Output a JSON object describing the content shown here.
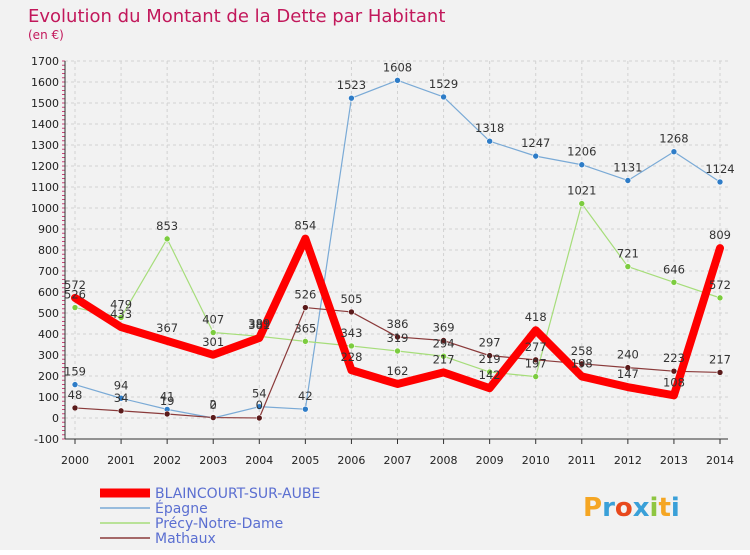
{
  "chart_data": {
    "type": "line",
    "title": "Evolution du Montant de la Dette par Habitant",
    "unit_label": "(en €)",
    "x": [
      2000,
      2001,
      2002,
      2003,
      2004,
      2005,
      2006,
      2007,
      2008,
      2009,
      2010,
      2011,
      2012,
      2013,
      2014
    ],
    "ylim": [
      -100,
      1700
    ],
    "yticks": [
      -100,
      0,
      100,
      200,
      300,
      400,
      500,
      600,
      700,
      800,
      900,
      1000,
      1100,
      1200,
      1300,
      1400,
      1500,
      1600,
      1700
    ],
    "grid": true,
    "legend": "bottom-left",
    "series": [
      {
        "name": "Épagne",
        "color": "#7aaad6",
        "marker": "#2e7cc7",
        "width": 1.2,
        "values": [
          159,
          94,
          41,
          0,
          54,
          42,
          1523,
          1608,
          1529,
          1318,
          1247,
          1206,
          1131,
          1268,
          1124
        ]
      },
      {
        "name": "Précy-Notre-Dame",
        "color": "#a6dd7a",
        "marker": "#7ccc3f",
        "width": 1.2,
        "values": [
          526,
          479,
          853,
          407,
          389,
          365,
          343,
          319,
          294,
          219,
          197,
          1021,
          721,
          646,
          572
        ]
      },
      {
        "name": "Mathaux",
        "color": "#8a3a3a",
        "marker": "#5a1a1a",
        "width": 1.2,
        "values": [
          48,
          34,
          19,
          2,
          0,
          526,
          505,
          386,
          369,
          297,
          277,
          258,
          240,
          223,
          217
        ]
      },
      {
        "name": "BLAINCOURT-SUR-AUBE",
        "color": "#ff0000",
        "marker": "#ff0000",
        "width": 8,
        "values": [
          572,
          433,
          367,
          301,
          381,
          854,
          228,
          162,
          217,
          142,
          418,
          198,
          147,
          108,
          809
        ]
      }
    ]
  },
  "logo": {
    "text": "Proxiti",
    "colors": [
      "#f5a623",
      "#3aa0d8",
      "#e8491d",
      "#3aa0d8",
      "#8fc641",
      "#f5a623",
      "#3aa0d8"
    ]
  }
}
